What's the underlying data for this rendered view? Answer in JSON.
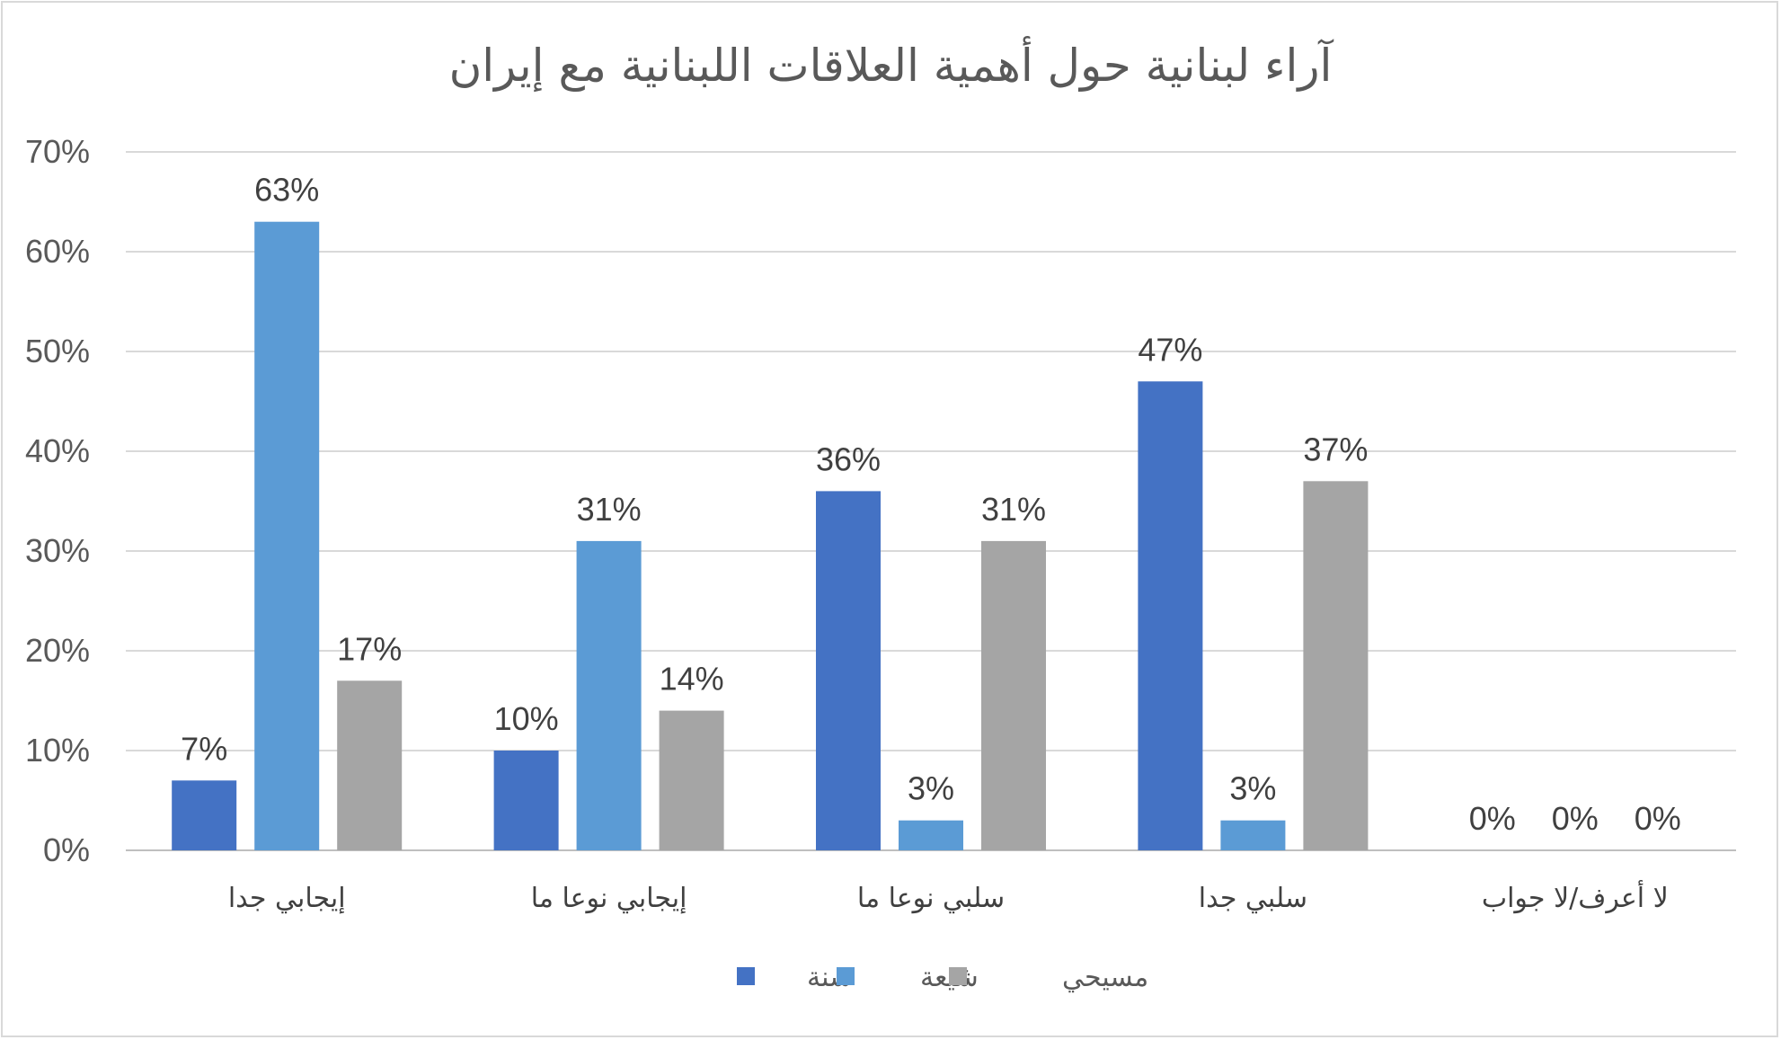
{
  "chart_data": {
    "type": "bar",
    "title": "آراء لبنانية حول أهمية العلاقات اللبنانية مع إيران",
    "categories": [
      "إيجابي جدا",
      "إيجابي نوعا ما",
      "سلبي نوعا ما",
      "سلبي جدا",
      "لا أعرف/لا جواب"
    ],
    "series": [
      {
        "name": "سنة",
        "values": [
          7,
          10,
          36,
          47,
          0
        ],
        "color": "#4472c4"
      },
      {
        "name": "شيعة",
        "values": [
          63,
          31,
          3,
          3,
          0
        ],
        "color": "#5b9bd5"
      },
      {
        "name": "مسيحي",
        "values": [
          17,
          14,
          31,
          37,
          0
        ],
        "color": "#a5a5a5"
      }
    ],
    "data_labels": [
      [
        "7%",
        "10%",
        "36%",
        "47%",
        "0%"
      ],
      [
        "63%",
        "31%",
        "3%",
        "3%",
        "0%"
      ],
      [
        "17%",
        "14%",
        "31%",
        "37%",
        "0%"
      ]
    ],
    "y_ticks": [
      "0%",
      "10%",
      "20%",
      "30%",
      "40%",
      "50%",
      "60%",
      "70%"
    ],
    "ylim": [
      0,
      70
    ],
    "grid": true,
    "legend_position": "bottom",
    "gridline_color": "#d9d9d9",
    "axis_line_color": "#bfbfbf"
  }
}
